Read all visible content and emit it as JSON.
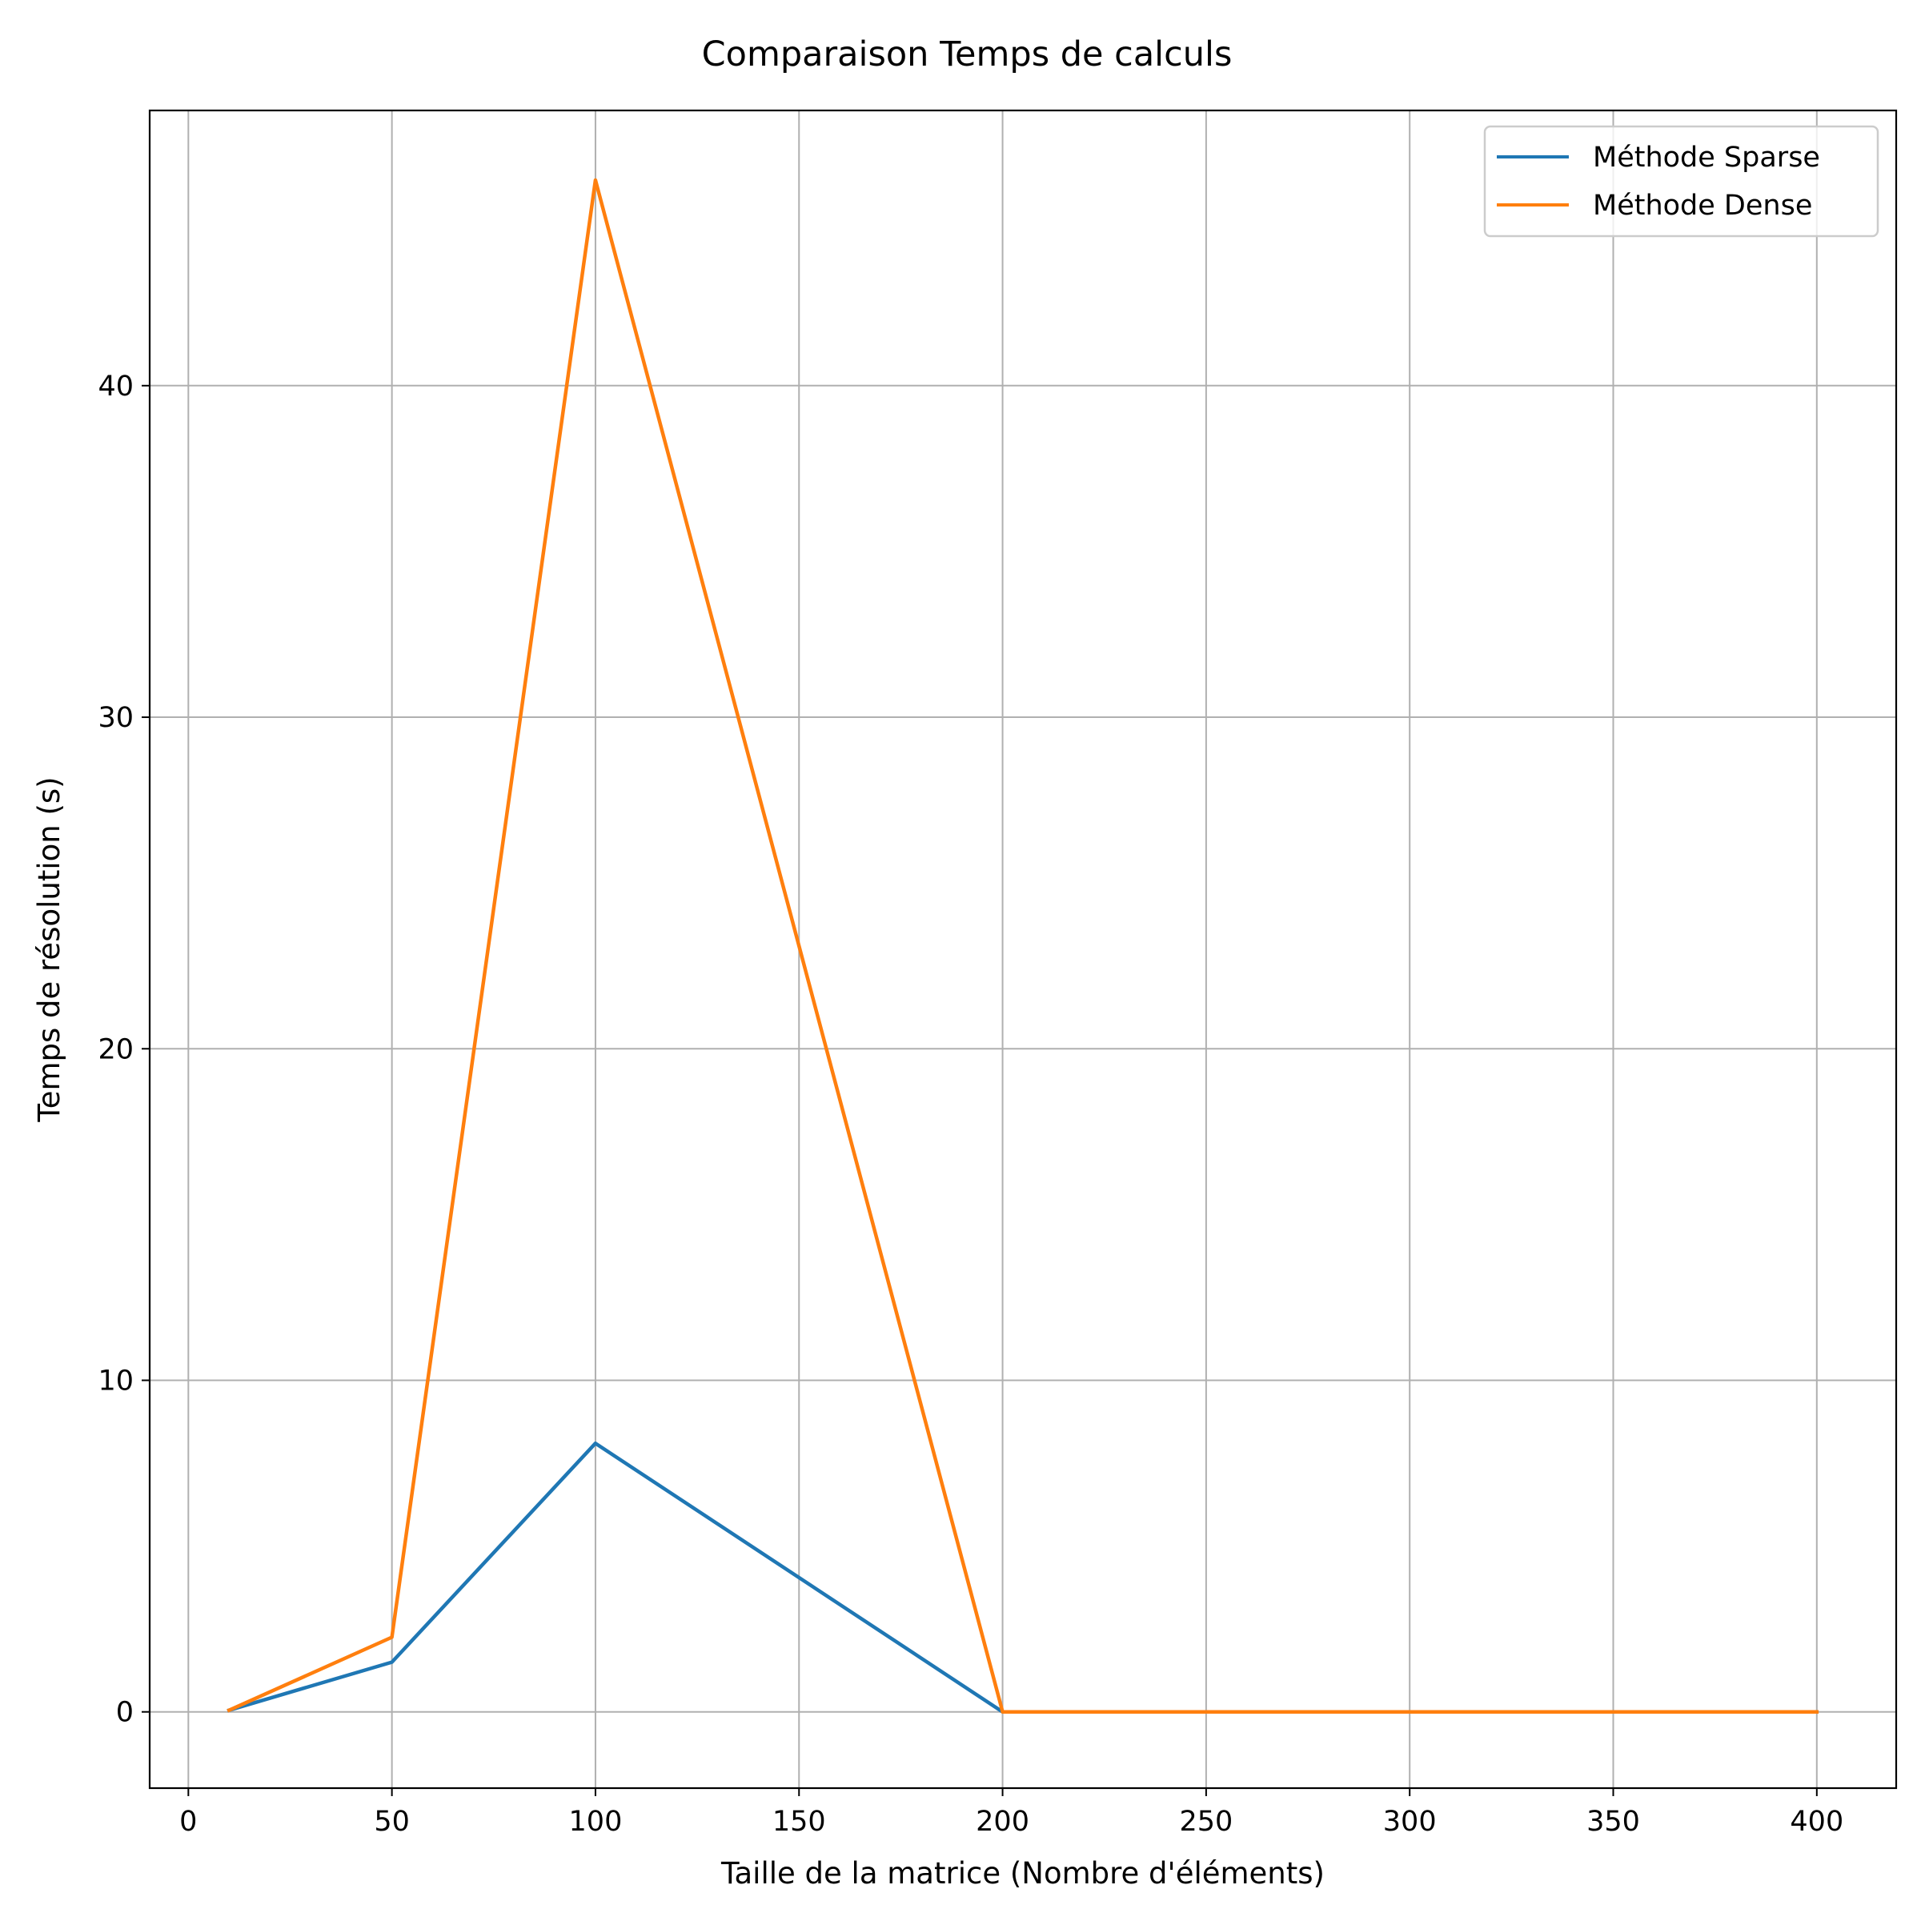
{
  "chart_data": {
    "type": "line",
    "title": "Comparaison Temps de calculs",
    "xlabel": "Taille de la matrice (Nombre d'éléments)",
    "ylabel": "Temps de résolution (s)",
    "xlim": [
      -9.5,
      419.5
    ],
    "ylim": [
      -2.3,
      48.3
    ],
    "xticks": [
      0,
      50,
      100,
      150,
      200,
      250,
      300,
      350,
      400
    ],
    "yticks": [
      0,
      10,
      20,
      30,
      40
    ],
    "grid": true,
    "legend_position": "top-right",
    "x": [
      10,
      50,
      100,
      200,
      300,
      400
    ],
    "series": [
      {
        "name": "Méthode Sparse",
        "color": "#1f77b4",
        "values": [
          0.05,
          1.5,
          8.1,
          0.0,
          0.0,
          0.0
        ]
      },
      {
        "name": "Méthode Dense",
        "color": "#ff7f0e",
        "values": [
          0.05,
          2.25,
          46.2,
          0.0,
          0.0,
          0.0
        ]
      }
    ]
  }
}
